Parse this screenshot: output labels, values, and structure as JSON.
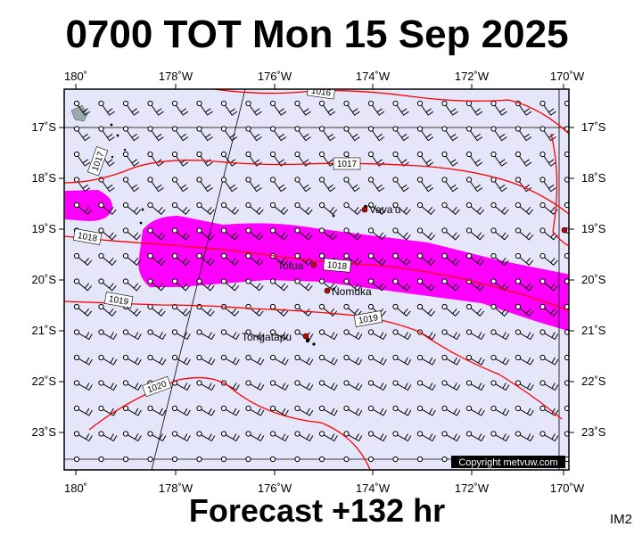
{
  "title": "0700 TOT Mon 15 Sep 2025",
  "forecast_label": "Forecast +132 hr",
  "model_label": "IM2",
  "copyright": "Copyright metvuw.com",
  "colors": {
    "sea": "#e6e6fa",
    "rain": "#ff00ff",
    "isobar": "#ff0000",
    "place_marker": "#cc0000"
  },
  "longitude_labels": [
    "180˚",
    "178˚W",
    "176˚W",
    "174˚W",
    "172˚W",
    "170˚W"
  ],
  "latitude_labels": [
    "17˚S",
    "18˚S",
    "19˚S",
    "20˚S",
    "21˚S",
    "22˚S",
    "23˚S"
  ],
  "isobar_labels": [
    "1016",
    "1017",
    "1017",
    "1018",
    "1018",
    "1019",
    "1019",
    "1020"
  ],
  "places": [
    "Vava'u",
    "Tofua",
    "Nomuka",
    "Tongatapu"
  ]
}
